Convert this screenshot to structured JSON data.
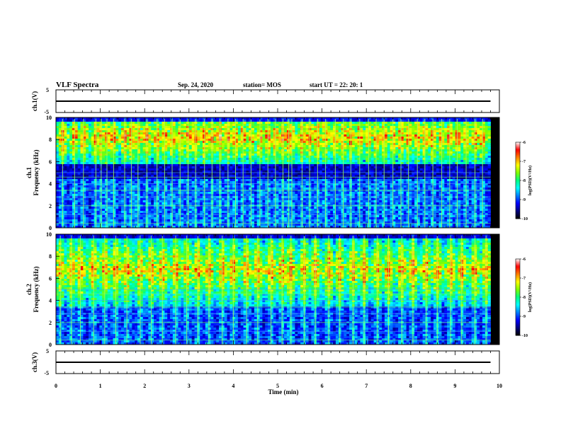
{
  "header": {
    "title": "VLF Spectra",
    "date": "Sep. 24, 2020",
    "station": "station= MOS",
    "start": "start UT =  22: 20: 1"
  },
  "colors": {
    "spectrogram_scale": [
      "#000000",
      "#00007f",
      "#0000ff",
      "#0080ff",
      "#00ffff",
      "#00ff80",
      "#80ff00",
      "#ffff00",
      "#ff8000",
      "#ff0000",
      "#ffffff"
    ],
    "trace": "#000000"
  },
  "chart_data": [
    {
      "type": "line",
      "name": "ch1-waveform",
      "ylabel": "ch.1(V)",
      "ylim": [
        -5,
        5
      ],
      "yticks": [
        "5",
        "-5"
      ],
      "xlim": [
        0,
        10
      ],
      "x": [
        0,
        9.8
      ],
      "y": [
        0,
        0
      ]
    },
    {
      "type": "heatmap",
      "name": "ch1-spectrogram",
      "ylabel_lines": [
        "ch.1",
        "Frequency (kHz)"
      ],
      "ylim": [
        0,
        10
      ],
      "yticks": [
        "0",
        "2",
        "4",
        "6",
        "8",
        "10"
      ],
      "xlim": [
        0,
        10
      ],
      "data_end": 9.8,
      "band_center_khz": 8.2,
      "band_halfwidth_khz": 1.6,
      "colorbar": {
        "label": "log(PSD)(V²/Hz)",
        "ticks": [
          "-6",
          "-7",
          "-8",
          "-9",
          "-10"
        ],
        "range": [
          -10,
          -6
        ]
      },
      "impulse_times_min": [
        0.15,
        0.42,
        0.62,
        0.9,
        1.02,
        1.15,
        1.3,
        1.55,
        1.7,
        1.85,
        2.05,
        2.28,
        2.45,
        2.62,
        2.8,
        2.98,
        3.15,
        3.35,
        3.52,
        3.7,
        3.88,
        4.05,
        4.22,
        4.4,
        4.6,
        4.78,
        4.95,
        5.12,
        5.25,
        5.32,
        5.55,
        5.72,
        5.9,
        6.08,
        6.3,
        6.48,
        6.65,
        6.85,
        7.05,
        7.22,
        7.4,
        7.6,
        7.78,
        7.95,
        8.15,
        8.32,
        8.5,
        8.7,
        8.88,
        9.05,
        9.25,
        9.45,
        9.62
      ]
    },
    {
      "type": "heatmap",
      "name": "ch2-spectrogram",
      "ylabel_lines": [
        "ch.2",
        "Frequency (kHz)"
      ],
      "ylim": [
        0,
        10
      ],
      "yticks": [
        "0",
        "2",
        "4",
        "6",
        "8",
        "10"
      ],
      "xlim": [
        0,
        10
      ],
      "data_end": 9.8,
      "band_center_khz": 6.8,
      "band_halfwidth_khz": 2.2,
      "colorbar": {
        "label": "log(PSD)(V²/Hz)",
        "ticks": [
          "-6",
          "-7",
          "-8",
          "-9",
          "-10"
        ],
        "range": [
          -10,
          -6
        ]
      },
      "impulse_times_min": [
        0.1,
        0.35,
        0.55,
        0.85,
        1.1,
        1.35,
        1.6,
        1.9,
        2.15,
        2.4,
        2.7,
        2.95,
        3.2,
        3.45,
        3.75,
        4.0,
        4.3,
        4.55,
        4.85,
        5.1,
        5.3,
        5.6,
        5.85,
        6.15,
        6.4,
        6.7,
        6.95,
        7.25,
        7.5,
        7.8,
        8.05,
        8.35,
        8.6,
        8.9,
        9.15,
        9.45,
        9.7
      ]
    },
    {
      "type": "line",
      "name": "ch3-waveform",
      "ylabel": "ch.3(V)",
      "ylim": [
        -5,
        5
      ],
      "yticks": [
        "5",
        "-5"
      ],
      "xlim": [
        0,
        10
      ],
      "x": [
        0,
        9.8
      ],
      "y": [
        0,
        0
      ]
    }
  ],
  "xaxis": {
    "label": "Time (min)",
    "ticks": [
      "0",
      "1",
      "2",
      "3",
      "4",
      "5",
      "6",
      "7",
      "8",
      "9",
      "10"
    ]
  }
}
